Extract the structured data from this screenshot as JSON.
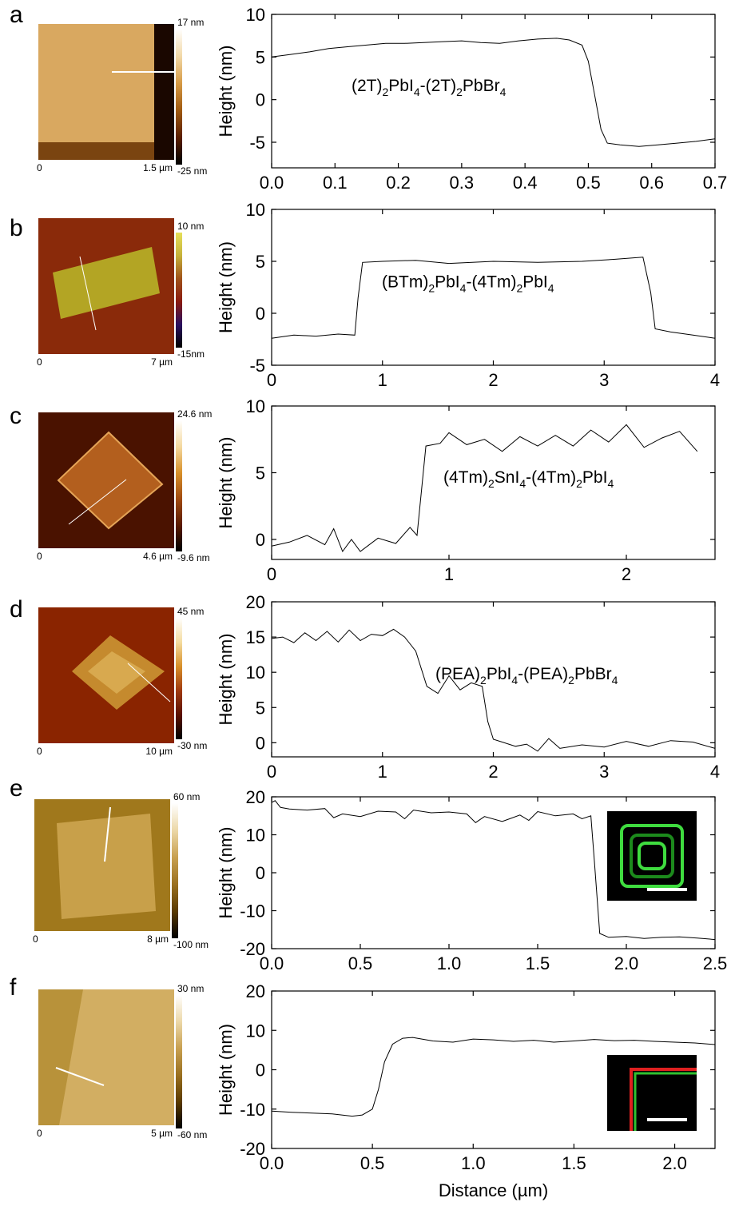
{
  "figure": {
    "panels": [
      {
        "letter": "a",
        "afm": {
          "colorbar_max": "17 nm",
          "colorbar_min": "-25 nm",
          "scale_start": "0",
          "scale_end": "1.5 µm",
          "palette": [
            "#000000",
            "#5a1e00",
            "#a05a10",
            "#d69a45",
            "#f2d9a8",
            "#ffffff"
          ]
        }
      },
      {
        "letter": "b",
        "afm": {
          "colorbar_max": "10 nm",
          "colorbar_min": "-15nm",
          "scale_start": "0",
          "scale_end": "7 µm",
          "palette": [
            "#000000",
            "#2a1060",
            "#8a1a10",
            "#a0521a",
            "#c6b23a",
            "#e6e05a"
          ]
        }
      },
      {
        "letter": "c",
        "afm": {
          "colorbar_max": "24.6 nm",
          "colorbar_min": "-9.6 nm",
          "scale_start": "0",
          "scale_end": "4.6 µm",
          "palette": [
            "#000000",
            "#5a1a00",
            "#a04a10",
            "#d8902a",
            "#f4d9a0",
            "#ffffff"
          ]
        }
      },
      {
        "letter": "d",
        "afm": {
          "colorbar_max": "45 nm",
          "colorbar_min": "-30 nm",
          "scale_start": "0",
          "scale_end": "10 µm",
          "palette": [
            "#000000",
            "#5a1000",
            "#a03a10",
            "#d8902a",
            "#f4dca0",
            "#ffffff"
          ]
        }
      },
      {
        "letter": "e",
        "afm": {
          "colorbar_max": "60 nm",
          "colorbar_min": "-100 nm",
          "scale_start": "0",
          "scale_end": "8 µm",
          "palette": [
            "#000000",
            "#5a3a00",
            "#9a7020",
            "#c8a050",
            "#ecd8a8",
            "#ffffff"
          ]
        }
      },
      {
        "letter": "f",
        "afm": {
          "colorbar_max": "30 nm",
          "colorbar_min": "-60 nm",
          "scale_start": "0",
          "scale_end": "5 µm",
          "palette": [
            "#000000",
            "#5a3a00",
            "#9a7020",
            "#c8a050",
            "#ecd8a8",
            "#ffffff"
          ]
        }
      }
    ]
  },
  "chart_data": [
    {
      "type": "line",
      "panel": "a",
      "ylabel": "Height (nm)",
      "xlabel": "",
      "xlim": [
        0,
        0.7
      ],
      "ylim": [
        -8,
        10
      ],
      "xticks": [
        "0.0",
        "0.1",
        "0.2",
        "0.3",
        "0.4",
        "0.5",
        "0.6",
        "0.7"
      ],
      "yticks": [
        "-5",
        "0",
        "5",
        "10"
      ],
      "annotation": {
        "parts": [
          [
            "(2T)",
            ""
          ],
          [
            "2",
            "sub"
          ],
          [
            "PbI",
            ""
          ],
          [
            "4",
            "sub"
          ],
          [
            "-(2T)",
            ""
          ],
          [
            "2",
            "sub"
          ],
          [
            "PbBr",
            ""
          ],
          [
            "4",
            "sub"
          ]
        ]
      },
      "x": [
        0,
        0.03,
        0.06,
        0.09,
        0.12,
        0.15,
        0.18,
        0.21,
        0.24,
        0.27,
        0.3,
        0.33,
        0.36,
        0.39,
        0.42,
        0.45,
        0.47,
        0.49,
        0.5,
        0.51,
        0.52,
        0.53,
        0.55,
        0.58,
        0.61,
        0.64,
        0.67,
        0.7
      ],
      "y": [
        5.0,
        5.3,
        5.6,
        6.0,
        6.2,
        6.4,
        6.6,
        6.6,
        6.7,
        6.8,
        6.9,
        6.7,
        6.6,
        6.9,
        7.1,
        7.2,
        7.0,
        6.4,
        4.5,
        0.5,
        -3.5,
        -5.1,
        -5.3,
        -5.5,
        -5.3,
        -5.1,
        -4.9,
        -4.6
      ]
    },
    {
      "type": "line",
      "panel": "b",
      "ylabel": "Height (nm)",
      "xlabel": "",
      "xlim": [
        0,
        4
      ],
      "ylim": [
        -5,
        10
      ],
      "xticks": [
        "0",
        "1",
        "2",
        "3",
        "4"
      ],
      "yticks": [
        "-5",
        "0",
        "5",
        "10"
      ],
      "annotation": {
        "parts": [
          [
            "(BTm)",
            ""
          ],
          [
            "2",
            "sub"
          ],
          [
            "PbI",
            ""
          ],
          [
            "4",
            "sub"
          ],
          [
            "-(4Tm)",
            ""
          ],
          [
            "2",
            "sub"
          ],
          [
            "PbI",
            ""
          ],
          [
            "4",
            "sub"
          ]
        ]
      },
      "x": [
        0,
        0.2,
        0.4,
        0.6,
        0.75,
        0.78,
        0.82,
        1.0,
        1.3,
        1.6,
        2.0,
        2.4,
        2.8,
        3.1,
        3.35,
        3.42,
        3.46,
        3.6,
        3.8,
        4.0
      ],
      "y": [
        -2.4,
        -2.1,
        -2.2,
        -2.0,
        -2.1,
        1.5,
        4.9,
        5.0,
        5.1,
        4.8,
        5.0,
        4.9,
        5.0,
        5.2,
        5.4,
        2.0,
        -1.5,
        -1.8,
        -2.1,
        -2.4
      ]
    },
    {
      "type": "line",
      "panel": "c",
      "ylabel": "Height (nm)",
      "xlabel": "",
      "xlim": [
        0,
        2.5
      ],
      "ylim": [
        -1.5,
        10
      ],
      "xticks": [
        "0",
        "1",
        "2"
      ],
      "yticks": [
        "0",
        "5",
        "10"
      ],
      "annotation": {
        "parts": [
          [
            "(4Tm)",
            ""
          ],
          [
            "2",
            "sub"
          ],
          [
            "SnI",
            ""
          ],
          [
            "4",
            "sub"
          ],
          [
            "-(4Tm)",
            ""
          ],
          [
            "2",
            "sub"
          ],
          [
            "PbI",
            ""
          ],
          [
            "4",
            "sub"
          ]
        ]
      },
      "x": [
        0,
        0.1,
        0.2,
        0.3,
        0.35,
        0.4,
        0.45,
        0.5,
        0.6,
        0.7,
        0.78,
        0.82,
        0.87,
        0.95,
        1.0,
        1.1,
        1.2,
        1.3,
        1.4,
        1.5,
        1.6,
        1.7,
        1.8,
        1.9,
        2.0,
        2.1,
        2.2,
        2.3,
        2.4
      ],
      "y": [
        -0.5,
        -0.2,
        0.3,
        -0.4,
        0.8,
        -0.9,
        0.0,
        -0.9,
        0.1,
        -0.3,
        0.9,
        0.3,
        7.0,
        7.2,
        8.0,
        7.1,
        7.5,
        6.6,
        7.7,
        7.0,
        7.8,
        7.0,
        8.2,
        7.3,
        8.6,
        6.9,
        7.6,
        8.1,
        6.6
      ]
    },
    {
      "type": "line",
      "panel": "d",
      "ylabel": "Height (nm)",
      "xlabel": "",
      "xlim": [
        0,
        4
      ],
      "ylim": [
        -2,
        20
      ],
      "xticks": [
        "0",
        "1",
        "2",
        "3",
        "4"
      ],
      "yticks": [
        "0",
        "5",
        "10",
        "15",
        "20"
      ],
      "annotation": {
        "parts": [
          [
            "(PEA)",
            ""
          ],
          [
            "2",
            "sub"
          ],
          [
            "PbI",
            ""
          ],
          [
            "4",
            "sub"
          ],
          [
            "-(PEA)",
            ""
          ],
          [
            "2",
            "sub"
          ],
          [
            "PbBr",
            ""
          ],
          [
            "4",
            "sub"
          ]
        ]
      },
      "x": [
        0,
        0.1,
        0.2,
        0.3,
        0.4,
        0.5,
        0.6,
        0.7,
        0.8,
        0.9,
        1.0,
        1.1,
        1.2,
        1.3,
        1.4,
        1.5,
        1.6,
        1.7,
        1.8,
        1.9,
        1.95,
        2.0,
        2.1,
        2.2,
        2.3,
        2.4,
        2.5,
        2.6,
        2.8,
        3.0,
        3.2,
        3.4,
        3.6,
        3.8,
        4.0
      ],
      "y": [
        14.8,
        15.0,
        14.2,
        15.6,
        14.5,
        15.8,
        14.3,
        16.0,
        14.5,
        15.4,
        15.2,
        16.1,
        15.0,
        13.0,
        8.0,
        7.0,
        9.5,
        7.5,
        8.5,
        8.0,
        3.0,
        0.5,
        0.0,
        -0.5,
        -0.2,
        -1.2,
        0.6,
        -0.8,
        -0.3,
        -0.6,
        0.2,
        -0.5,
        0.3,
        0.1,
        -0.8
      ]
    },
    {
      "type": "line",
      "panel": "e",
      "ylabel": "Height (nm)",
      "xlabel": "",
      "xlim": [
        0,
        2.5
      ],
      "ylim": [
        -20,
        20
      ],
      "xticks": [
        "0.0",
        "0.5",
        "1.0",
        "1.5",
        "2.0",
        "2.5"
      ],
      "yticks": [
        "-20",
        "-10",
        "0",
        "10",
        "20"
      ],
      "inset": {
        "colors": [
          "#000000",
          "#1c8a1c",
          "#3fdc3f"
        ],
        "scalebar_color": "#ffffff"
      },
      "x": [
        0,
        0.02,
        0.05,
        0.1,
        0.2,
        0.3,
        0.35,
        0.4,
        0.5,
        0.6,
        0.7,
        0.75,
        0.8,
        0.9,
        1.0,
        1.1,
        1.15,
        1.2,
        1.3,
        1.4,
        1.45,
        1.5,
        1.6,
        1.7,
        1.75,
        1.8,
        1.82,
        1.85,
        1.9,
        2.0,
        2.1,
        2.2,
        2.3,
        2.4,
        2.5
      ],
      "y": [
        18.5,
        19.0,
        17.2,
        16.8,
        16.5,
        16.9,
        14.5,
        15.5,
        14.8,
        16.2,
        16.0,
        14.2,
        16.5,
        15.8,
        16.0,
        15.5,
        13.2,
        14.8,
        13.5,
        15.2,
        13.8,
        16.1,
        15.0,
        15.5,
        14.2,
        15.0,
        3.0,
        -16.0,
        -17.0,
        -16.8,
        -17.3,
        -17.0,
        -16.9,
        -17.2,
        -17.6
      ]
    },
    {
      "type": "line",
      "panel": "f",
      "ylabel": "Height (nm)",
      "xlabel": "Distance (µm)",
      "xlim": [
        0,
        2.2
      ],
      "ylim": [
        -20,
        20
      ],
      "xticks": [
        "0.0",
        "0.5",
        "1.0",
        "1.5",
        "2.0"
      ],
      "yticks": [
        "-20",
        "-10",
        "0",
        "10",
        "20"
      ],
      "inset": {
        "colors": [
          "#000000",
          "#e02020",
          "#30c030"
        ],
        "scalebar_color": "#ffffff"
      },
      "x": [
        0,
        0.1,
        0.2,
        0.3,
        0.4,
        0.45,
        0.5,
        0.53,
        0.56,
        0.6,
        0.65,
        0.7,
        0.8,
        0.9,
        1.0,
        1.1,
        1.2,
        1.3,
        1.4,
        1.5,
        1.6,
        1.7,
        1.8,
        1.9,
        2.0,
        2.1,
        2.2
      ],
      "y": [
        -10.5,
        -10.8,
        -11.0,
        -11.2,
        -11.8,
        -11.5,
        -10.0,
        -5.0,
        2.0,
        6.5,
        8.0,
        8.2,
        7.3,
        7.0,
        7.8,
        7.6,
        7.2,
        7.5,
        7.0,
        7.3,
        7.7,
        7.4,
        7.5,
        7.2,
        7.0,
        6.8,
        6.4
      ]
    }
  ]
}
